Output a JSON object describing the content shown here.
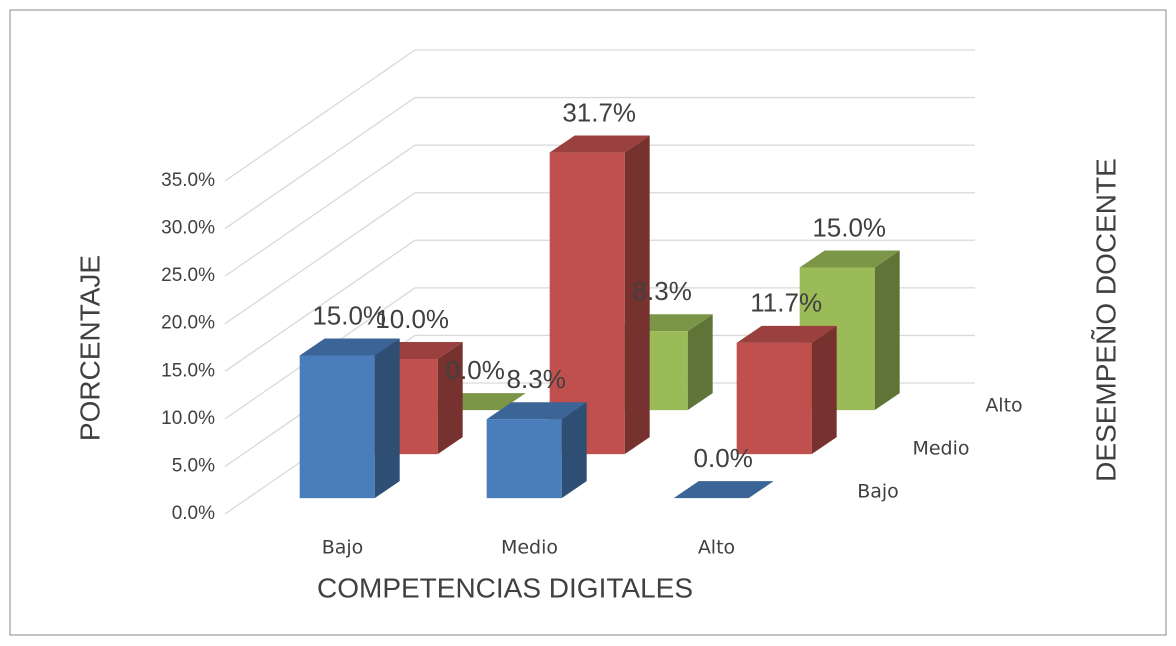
{
  "chart_data": {
    "type": "bar3d",
    "ylabel": "PORCENTAJE",
    "xlabel": "COMPETENCIAS DIGITALES",
    "zlabel": "DESEMPEÑO DOCENTE",
    "categories": [
      "Bajo",
      "Medio",
      "Alto"
    ],
    "series": [
      {
        "name": "Bajo",
        "color": "#4a7ebb",
        "values": [
          15.0,
          8.3,
          0.0
        ],
        "value_labels": [
          "15.0%",
          "8.3%",
          "0.0%"
        ]
      },
      {
        "name": "Medio",
        "color": "#c0504d",
        "values": [
          10.0,
          31.7,
          11.7
        ],
        "value_labels": [
          "10.0%",
          "31.7%",
          "11.7%"
        ]
      },
      {
        "name": "Alto",
        "color": "#9bbb59",
        "values": [
          0.0,
          8.3,
          15.0
        ],
        "value_labels": [
          "0.0%",
          "8.3%",
          "15.0%"
        ]
      }
    ],
    "ylim": [
      0,
      35
    ],
    "yticks": [
      {
        "value": 0,
        "label": "0.0%"
      },
      {
        "value": 5,
        "label": "5.0%"
      },
      {
        "value": 10,
        "label": "10.0%"
      },
      {
        "value": 15,
        "label": "15.0%"
      },
      {
        "value": 20,
        "label": "20.0%"
      },
      {
        "value": 25,
        "label": "25.0%"
      },
      {
        "value": 30,
        "label": "30.0%"
      },
      {
        "value": 35,
        "label": "35.0%"
      }
    ],
    "grid": true
  }
}
